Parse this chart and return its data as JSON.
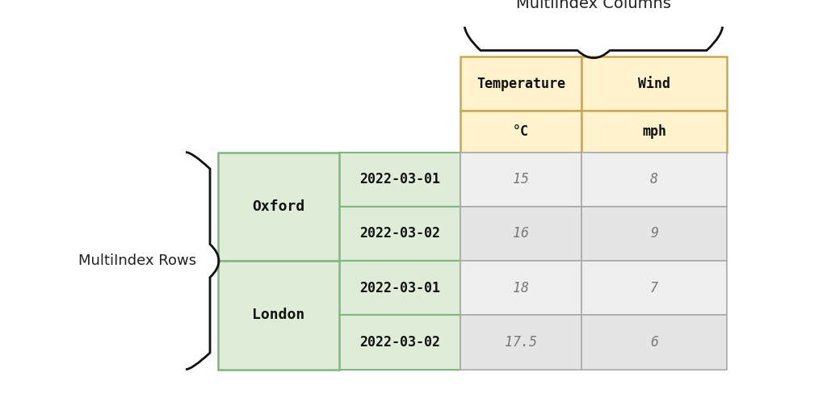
{
  "title_cols": "MultiIndex Columns",
  "title_rows": "MultiIndex Rows",
  "col_headers_level1": [
    "Temperature",
    "Wind"
  ],
  "col_headers_level2": [
    "°C",
    "mph"
  ],
  "row_headers_level1": [
    "Oxford",
    "London"
  ],
  "row_headers_level2": [
    "2022-03-01",
    "2022-03-02",
    "2022-03-01",
    "2022-03-02"
  ],
  "data": [
    [
      15,
      8
    ],
    [
      16,
      9
    ],
    [
      18,
      7
    ],
    [
      17.5,
      6
    ]
  ],
  "bg_color": "#ffffff",
  "header_col_bg": "#fef3cd",
  "header_row_bg": "#deecd8",
  "data_cell_bg_alt1": "#efefef",
  "data_cell_bg_alt2": "#e5e5e5",
  "header_border_color": "#c8a951",
  "row_border_color": "#7db87d",
  "data_border_color": "#aaaaaa",
  "font_color_header": "#111111",
  "font_color_data": "#777777",
  "font_size_title": 14,
  "font_size_header": 12,
  "font_size_data": 12,
  "font_size_label": 13
}
